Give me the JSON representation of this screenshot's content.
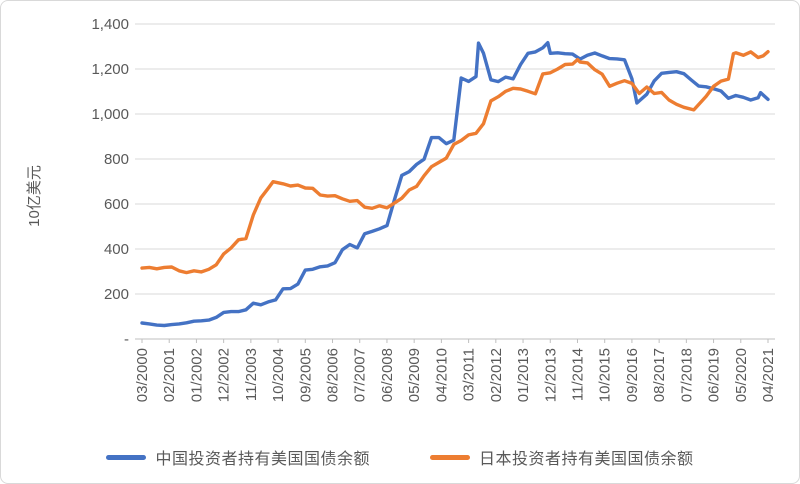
{
  "frame": {
    "background": "#ffffff",
    "border_color": "#d9d9d9",
    "gridline_color": "#d9d9d9",
    "axis_color": "#bfbfbf",
    "tick_label_color": "#595959"
  },
  "chart_data": {
    "type": "line",
    "title": "",
    "xlabel": "",
    "ylabel": "10亿美元",
    "ylim": [
      0,
      1400
    ],
    "grid": true,
    "legend_position": "bottom",
    "y_ticks": [
      {
        "label": "-",
        "value": 0
      },
      {
        "label": "200",
        "value": 200
      },
      {
        "label": "400",
        "value": 400
      },
      {
        "label": "600",
        "value": 600
      },
      {
        "label": "800",
        "value": 800
      },
      {
        "label": "1,000",
        "value": 1000
      },
      {
        "label": "1,200",
        "value": 1200
      },
      {
        "label": "1,400",
        "value": 1400
      }
    ],
    "x_tick_labels": [
      "03/2000",
      "02/2001",
      "01/2002",
      "12/2002",
      "11/2003",
      "10/2004",
      "09/2005",
      "08/2006",
      "07/2007",
      "06/2008",
      "05/2009",
      "04/2010",
      "03/2011",
      "02/2012",
      "01/2013",
      "12/2013",
      "11/2014",
      "10/2015",
      "09/2016",
      "08/2017",
      "07/2018",
      "06/2019",
      "05/2020",
      "04/2021"
    ],
    "series": [
      {
        "name": "中国投资者持有美国国债余额",
        "color": "#4472C4",
        "data": [
          [
            "2000-03",
            71
          ],
          [
            "2000-06",
            67
          ],
          [
            "2000-09",
            62
          ],
          [
            "2000-12",
            60
          ],
          [
            "2001-03",
            64
          ],
          [
            "2001-06",
            67
          ],
          [
            "2001-09",
            72
          ],
          [
            "2001-12",
            79
          ],
          [
            "2002-03",
            81
          ],
          [
            "2002-06",
            84
          ],
          [
            "2002-09",
            96
          ],
          [
            "2002-12",
            118
          ],
          [
            "2003-03",
            122
          ],
          [
            "2003-06",
            122
          ],
          [
            "2003-09",
            130
          ],
          [
            "2003-12",
            159
          ],
          [
            "2004-03",
            152
          ],
          [
            "2004-06",
            165
          ],
          [
            "2004-09",
            174
          ],
          [
            "2004-12",
            223
          ],
          [
            "2005-03",
            224
          ],
          [
            "2005-06",
            244
          ],
          [
            "2005-09",
            306
          ],
          [
            "2005-12",
            310
          ],
          [
            "2006-03",
            321
          ],
          [
            "2006-06",
            325
          ],
          [
            "2006-09",
            339
          ],
          [
            "2006-12",
            397
          ],
          [
            "2007-03",
            420
          ],
          [
            "2007-06",
            405
          ],
          [
            "2007-09",
            468
          ],
          [
            "2007-12",
            478
          ],
          [
            "2008-03",
            490
          ],
          [
            "2008-06",
            504
          ],
          [
            "2008-09",
            618
          ],
          [
            "2008-12",
            727
          ],
          [
            "2009-03",
            744
          ],
          [
            "2009-06",
            776
          ],
          [
            "2009-09",
            799
          ],
          [
            "2009-12",
            895
          ],
          [
            "2010-03",
            895
          ],
          [
            "2010-06",
            868
          ],
          [
            "2010-09",
            884
          ],
          [
            "2010-12",
            1160
          ],
          [
            "2011-03",
            1145
          ],
          [
            "2011-06",
            1166
          ],
          [
            "2011-07",
            1315
          ],
          [
            "2011-09",
            1270
          ],
          [
            "2011-12",
            1152
          ],
          [
            "2012-03",
            1144
          ],
          [
            "2012-06",
            1164
          ],
          [
            "2012-09",
            1156
          ],
          [
            "2012-12",
            1220
          ],
          [
            "2013-03",
            1270
          ],
          [
            "2013-06",
            1276
          ],
          [
            "2013-09",
            1294
          ],
          [
            "2013-11",
            1317
          ],
          [
            "2013-12",
            1270
          ],
          [
            "2014-03",
            1272
          ],
          [
            "2014-06",
            1268
          ],
          [
            "2014-09",
            1266
          ],
          [
            "2014-12",
            1244
          ],
          [
            "2015-03",
            1261
          ],
          [
            "2015-06",
            1271
          ],
          [
            "2015-09",
            1258
          ],
          [
            "2015-12",
            1246
          ],
          [
            "2016-03",
            1245
          ],
          [
            "2016-06",
            1241
          ],
          [
            "2016-09",
            1157
          ],
          [
            "2016-11",
            1049
          ],
          [
            "2016-12",
            1058
          ],
          [
            "2017-03",
            1088
          ],
          [
            "2017-06",
            1147
          ],
          [
            "2017-09",
            1181
          ],
          [
            "2017-12",
            1185
          ],
          [
            "2018-03",
            1188
          ],
          [
            "2018-06",
            1179
          ],
          [
            "2018-09",
            1151
          ],
          [
            "2018-12",
            1124
          ],
          [
            "2019-03",
            1121
          ],
          [
            "2019-06",
            1112
          ],
          [
            "2019-09",
            1102
          ],
          [
            "2019-12",
            1070
          ],
          [
            "2020-03",
            1082
          ],
          [
            "2020-06",
            1074
          ],
          [
            "2020-09",
            1062
          ],
          [
            "2020-12",
            1072
          ],
          [
            "2021-01",
            1095
          ],
          [
            "2021-04",
            1065
          ]
        ]
      },
      {
        "name": "日本投资者持有美国国债余额",
        "color": "#ED7D31",
        "data": [
          [
            "2000-03",
            315
          ],
          [
            "2000-06",
            318
          ],
          [
            "2000-09",
            312
          ],
          [
            "2000-12",
            318
          ],
          [
            "2001-03",
            320
          ],
          [
            "2001-06",
            303
          ],
          [
            "2001-09",
            295
          ],
          [
            "2001-12",
            303
          ],
          [
            "2002-03",
            298
          ],
          [
            "2002-06",
            310
          ],
          [
            "2002-09",
            330
          ],
          [
            "2002-12",
            378
          ],
          [
            "2003-03",
            405
          ],
          [
            "2003-06",
            441
          ],
          [
            "2003-09",
            446
          ],
          [
            "2003-12",
            551
          ],
          [
            "2004-03",
            627
          ],
          [
            "2004-06",
            670
          ],
          [
            "2004-08",
            699
          ],
          [
            "2004-12",
            690
          ],
          [
            "2005-03",
            680
          ],
          [
            "2005-06",
            684
          ],
          [
            "2005-09",
            671
          ],
          [
            "2005-12",
            670
          ],
          [
            "2006-03",
            640
          ],
          [
            "2006-06",
            635
          ],
          [
            "2006-09",
            637
          ],
          [
            "2006-12",
            623
          ],
          [
            "2007-03",
            612
          ],
          [
            "2007-06",
            615
          ],
          [
            "2007-09",
            586
          ],
          [
            "2007-12",
            581
          ],
          [
            "2008-03",
            592
          ],
          [
            "2008-06",
            583
          ],
          [
            "2008-09",
            604
          ],
          [
            "2008-12",
            626
          ],
          [
            "2009-03",
            662
          ],
          [
            "2009-06",
            678
          ],
          [
            "2009-09",
            726
          ],
          [
            "2009-12",
            766
          ],
          [
            "2010-03",
            785
          ],
          [
            "2010-06",
            804
          ],
          [
            "2010-09",
            865
          ],
          [
            "2010-12",
            882
          ],
          [
            "2011-03",
            907
          ],
          [
            "2011-06",
            914
          ],
          [
            "2011-09",
            957
          ],
          [
            "2011-12",
            1058
          ],
          [
            "2012-03",
            1077
          ],
          [
            "2012-06",
            1101
          ],
          [
            "2012-09",
            1114
          ],
          [
            "2012-12",
            1111
          ],
          [
            "2013-03",
            1101
          ],
          [
            "2013-06",
            1090
          ],
          [
            "2013-09",
            1178
          ],
          [
            "2013-12",
            1183
          ],
          [
            "2014-03",
            1200
          ],
          [
            "2014-06",
            1220
          ],
          [
            "2014-09",
            1222
          ],
          [
            "2014-11",
            1242
          ],
          [
            "2014-12",
            1231
          ],
          [
            "2015-03",
            1227
          ],
          [
            "2015-06",
            1197
          ],
          [
            "2015-09",
            1177
          ],
          [
            "2015-12",
            1123
          ],
          [
            "2016-03",
            1137
          ],
          [
            "2016-06",
            1148
          ],
          [
            "2016-09",
            1136
          ],
          [
            "2016-12",
            1091
          ],
          [
            "2017-03",
            1120
          ],
          [
            "2017-06",
            1091
          ],
          [
            "2017-09",
            1096
          ],
          [
            "2017-12",
            1062
          ],
          [
            "2018-03",
            1043
          ],
          [
            "2018-06",
            1030
          ],
          [
            "2018-10",
            1018
          ],
          [
            "2018-12",
            1042
          ],
          [
            "2019-03",
            1078
          ],
          [
            "2019-06",
            1123
          ],
          [
            "2019-09",
            1146
          ],
          [
            "2019-12",
            1155
          ],
          [
            "2020-02",
            1268
          ],
          [
            "2020-03",
            1272
          ],
          [
            "2020-06",
            1261
          ],
          [
            "2020-09",
            1276
          ],
          [
            "2020-12",
            1251
          ],
          [
            "2021-02",
            1258
          ],
          [
            "2021-04",
            1277
          ]
        ]
      }
    ]
  }
}
